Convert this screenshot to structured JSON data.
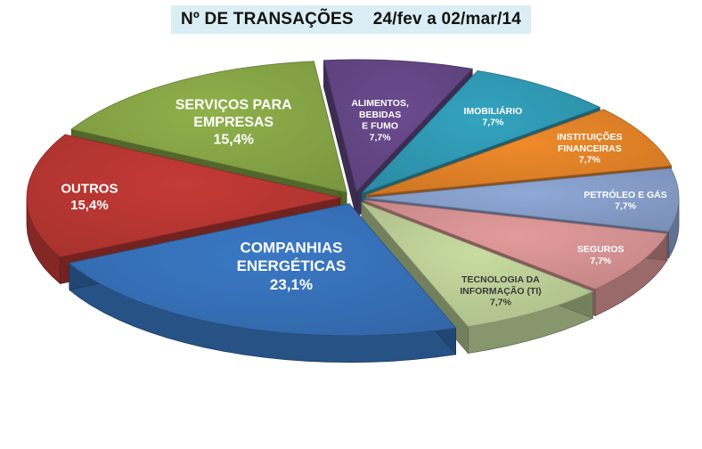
{
  "title": "Nº DE TRANSAÇÕES    24/fev a 02/mar/14",
  "chart_data": {
    "type": "pie",
    "style": "3d-exploded",
    "title": "Nº DE TRANSAÇÕES    24/fev a 02/mar/14",
    "legend": "none",
    "slices": [
      {
        "label": "ALIMENTOS,\nBEBIDAS\nE FUMO",
        "value": 7.7,
        "value_label": "7,7%",
        "color": "#6a4b8e",
        "label_color": "#ffffff"
      },
      {
        "label": "IMOBILIÁRIO",
        "value": 7.7,
        "value_label": "7,7%",
        "color": "#33a3bf",
        "label_color": "#ffffff"
      },
      {
        "label": "INSTITUIÇÕES\nFINANCEIRAS",
        "value": 7.7,
        "value_label": "7,7%",
        "color": "#ef8a2a",
        "label_color": "#ffffff"
      },
      {
        "label": "PETRÓLEO E GÁS",
        "value": 7.7,
        "value_label": "7,7%",
        "color": "#8fa8d6",
        "label_color": "#ffffff"
      },
      {
        "label": "SEGUROS",
        "value": 7.7,
        "value_label": "7,7%",
        "color": "#e39b9b",
        "label_color": "#ffffff"
      },
      {
        "label": "TECNOLOGIA DA\nINFORMAÇÃO (TI)",
        "value": 7.7,
        "value_label": "7,7%",
        "color": "#c8dca0",
        "label_color": "#3a3a3a"
      },
      {
        "label": "COMPANHIAS\nENERGÉTICAS",
        "value": 23.1,
        "value_label": "23,1%",
        "color": "#3a78c4",
        "label_color": "#ffffff"
      },
      {
        "label": "OUTROS",
        "value": 15.4,
        "value_label": "15,4%",
        "color": "#c43a36",
        "label_color": "#ffffff"
      },
      {
        "label": "SERVIÇOS PARA\nEMPRESAS",
        "value": 15.4,
        "value_label": "15,4%",
        "color": "#8fb04a",
        "label_color": "#ffffff"
      }
    ]
  }
}
